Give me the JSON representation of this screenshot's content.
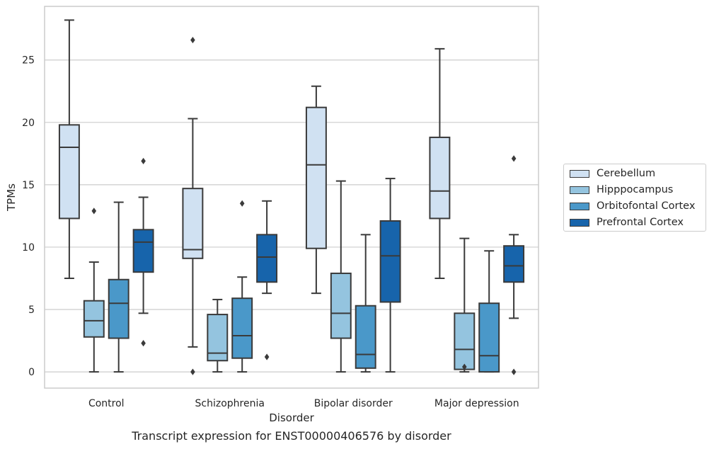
{
  "caption": "Transcript expression for ENST00000406576 by disorder",
  "colors": {
    "Cerebellum": "#d0e1f2",
    "Hipppocampus": "#94c4df",
    "Orbitofontal Cortex": "#4a98c9",
    "Prefrontal Cortex": "#1764ab",
    "box_edge": "#3a3a3a",
    "grid": "#cccccc",
    "frame": "#cccccc"
  },
  "chart_data": {
    "type": "box",
    "xlabel": "Disorder",
    "ylabel": "TPMs",
    "ylim": [
      -1.3,
      29.3
    ],
    "yticks": [
      0,
      5,
      10,
      15,
      20,
      25
    ],
    "grid": "horizontal",
    "legend_position": "right",
    "categories": [
      "Control",
      "Schizophrenia",
      "Bipolar disorder",
      "Major depression"
    ],
    "series": [
      {
        "name": "Cerebellum",
        "boxes": [
          {
            "whislo": 7.5,
            "q1": 12.3,
            "med": 18.0,
            "q3": 19.8,
            "whishi": 28.2,
            "fliers": []
          },
          {
            "whislo": 2.0,
            "q1": 9.1,
            "med": 9.8,
            "q3": 14.7,
            "whishi": 20.3,
            "fliers": [
              0.0,
              26.6
            ]
          },
          {
            "whislo": 6.3,
            "q1": 9.9,
            "med": 16.6,
            "q3": 21.2,
            "whishi": 22.9,
            "fliers": []
          },
          {
            "whislo": 7.5,
            "q1": 12.3,
            "med": 14.5,
            "q3": 18.8,
            "whishi": 25.9,
            "fliers": []
          }
        ]
      },
      {
        "name": "Hipppocampus",
        "boxes": [
          {
            "whislo": 0.0,
            "q1": 2.8,
            "med": 4.1,
            "q3": 5.7,
            "whishi": 8.8,
            "fliers": [
              12.9
            ]
          },
          {
            "whislo": 0.0,
            "q1": 0.9,
            "med": 1.5,
            "q3": 4.6,
            "whishi": 5.8,
            "fliers": []
          },
          {
            "whislo": 0.0,
            "q1": 2.7,
            "med": 4.7,
            "q3": 7.9,
            "whishi": 15.3,
            "fliers": []
          },
          {
            "whislo": 0.0,
            "q1": 0.2,
            "med": 1.8,
            "q3": 4.7,
            "whishi": 10.7,
            "fliers": [
              0.4
            ]
          }
        ]
      },
      {
        "name": "Orbitofontal Cortex",
        "boxes": [
          {
            "whislo": 0.0,
            "q1": 2.7,
            "med": 5.5,
            "q3": 7.4,
            "whishi": 13.6,
            "fliers": []
          },
          {
            "whislo": 0.0,
            "q1": 1.1,
            "med": 2.9,
            "q3": 5.9,
            "whishi": 7.6,
            "fliers": [
              13.5
            ]
          },
          {
            "whislo": 0.0,
            "q1": 0.3,
            "med": 1.4,
            "q3": 5.3,
            "whishi": 11.0,
            "fliers": []
          },
          {
            "whislo": 0.0,
            "q1": 0.0,
            "med": 1.3,
            "q3": 5.5,
            "whishi": 9.7,
            "fliers": []
          }
        ]
      },
      {
        "name": "Prefrontal Cortex",
        "boxes": [
          {
            "whislo": 4.7,
            "q1": 8.0,
            "med": 10.4,
            "q3": 11.4,
            "whishi": 14.0,
            "fliers": [
              2.3,
              16.9
            ]
          },
          {
            "whislo": 6.3,
            "q1": 7.2,
            "med": 9.2,
            "q3": 11.0,
            "whishi": 13.7,
            "fliers": [
              1.2
            ]
          },
          {
            "whislo": 0.0,
            "q1": 5.6,
            "med": 9.3,
            "q3": 12.1,
            "whishi": 15.5,
            "fliers": []
          },
          {
            "whislo": 4.3,
            "q1": 7.2,
            "med": 8.5,
            "q3": 10.1,
            "whishi": 11.0,
            "fliers": [
              0.0,
              17.1
            ]
          }
        ]
      }
    ]
  }
}
